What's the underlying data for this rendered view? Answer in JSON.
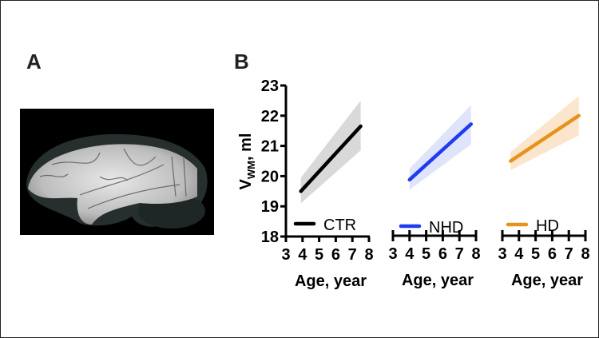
{
  "panels": {
    "a_label": "A",
    "b_label": "B"
  },
  "chart_data": {
    "type": "line",
    "ylabel_main": "V",
    "ylabel_sub": "WM",
    "ylabel_unit": ", ml",
    "xlabel": "Age, year",
    "ylim": [
      18,
      23
    ],
    "yticks": [
      18,
      19,
      20,
      21,
      22,
      23
    ],
    "xlim": [
      3,
      8
    ],
    "xticks": [
      3,
      4,
      5,
      6,
      7,
      8
    ],
    "grid": false,
    "series": [
      {
        "name": "CTR",
        "color": "#000000",
        "band_color": "#d9d9d9",
        "x": [
          3.9,
          7.5
        ],
        "y": [
          19.5,
          21.65
        ],
        "lower": [
          19.1,
          20.85
        ],
        "upper": [
          19.95,
          22.5
        ]
      },
      {
        "name": "NHD",
        "color": "#1f3cf0",
        "band_color": "#dfe4fb",
        "x": [
          4.0,
          7.7
        ],
        "y": [
          19.88,
          21.72
        ],
        "lower": [
          19.55,
          21.05
        ],
        "upper": [
          20.25,
          22.35
        ]
      },
      {
        "name": "HD",
        "color": "#e8921e",
        "band_color": "#fbe5cc",
        "x": [
          3.5,
          7.6
        ],
        "y": [
          20.5,
          22.0
        ],
        "lower": [
          20.2,
          21.35
        ],
        "upper": [
          20.8,
          22.65
        ]
      }
    ]
  }
}
